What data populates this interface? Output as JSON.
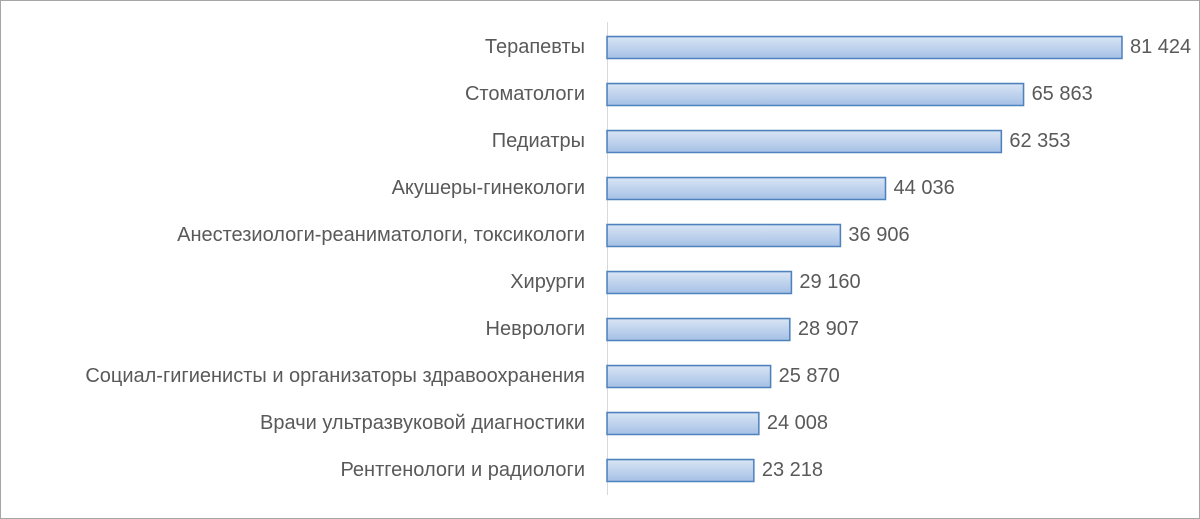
{
  "chart_data": {
    "type": "bar",
    "orientation": "horizontal",
    "categories": [
      "Терапевты",
      "Стоматологи",
      "Педиатры",
      "Акушеры-гинекологи",
      "Анестезиологи-реаниматологи, токсикологи",
      "Хирурги",
      "Неврологи",
      "Социал-гигиенисты и организаторы здравоохранения",
      "Врачи ультразвуковой диагностики",
      "Рентгенологи и радиологи"
    ],
    "values": [
      81424,
      65863,
      62353,
      44036,
      36906,
      29160,
      28907,
      25870,
      24008,
      23218
    ],
    "value_labels": [
      "81 424",
      "65 863",
      "62 353",
      "44 036",
      "36 906",
      "29 160",
      "28 907",
      "25 870",
      "24 008",
      "23 218"
    ],
    "color": "#a7c2e6"
  }
}
